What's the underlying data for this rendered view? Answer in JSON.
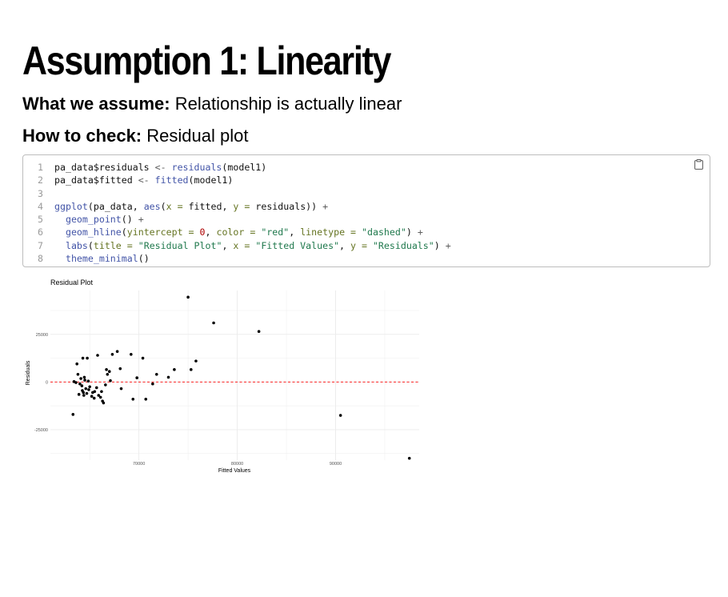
{
  "heading": "Assumption 1: Linearity",
  "assume": {
    "label": "What we assume:",
    "text": " Relationship is actually linear"
  },
  "check": {
    "label": "How to check:",
    "text": " Residual plot"
  },
  "code": {
    "copy_icon": "clipboard-icon",
    "lines": [
      [
        {
          "t": "var",
          "s": "pa_data$residuals "
        },
        {
          "t": "op",
          "s": "<-"
        },
        {
          "t": "var",
          "s": " "
        },
        {
          "t": "fn",
          "s": "residuals"
        },
        {
          "t": "var",
          "s": "(model1)"
        }
      ],
      [
        {
          "t": "var",
          "s": "pa_data$fitted "
        },
        {
          "t": "op",
          "s": "<-"
        },
        {
          "t": "var",
          "s": " "
        },
        {
          "t": "fn",
          "s": "fitted"
        },
        {
          "t": "var",
          "s": "(model1)"
        }
      ],
      [],
      [
        {
          "t": "fn",
          "s": "ggplot"
        },
        {
          "t": "var",
          "s": "(pa_data, "
        },
        {
          "t": "fn",
          "s": "aes"
        },
        {
          "t": "var",
          "s": "("
        },
        {
          "t": "arg",
          "s": "x ="
        },
        {
          "t": "var",
          "s": " fitted, "
        },
        {
          "t": "arg",
          "s": "y ="
        },
        {
          "t": "var",
          "s": " residuals)) "
        },
        {
          "t": "op",
          "s": "+"
        }
      ],
      [
        {
          "t": "var",
          "s": "  "
        },
        {
          "t": "fn",
          "s": "geom_point"
        },
        {
          "t": "var",
          "s": "() "
        },
        {
          "t": "op",
          "s": "+"
        }
      ],
      [
        {
          "t": "var",
          "s": "  "
        },
        {
          "t": "fn",
          "s": "geom_hline"
        },
        {
          "t": "var",
          "s": "("
        },
        {
          "t": "arg",
          "s": "yintercept ="
        },
        {
          "t": "var",
          "s": " "
        },
        {
          "t": "num",
          "s": "0"
        },
        {
          "t": "var",
          "s": ", "
        },
        {
          "t": "arg",
          "s": "color ="
        },
        {
          "t": "var",
          "s": " "
        },
        {
          "t": "str",
          "s": "\"red\""
        },
        {
          "t": "var",
          "s": ", "
        },
        {
          "t": "arg",
          "s": "linetype ="
        },
        {
          "t": "var",
          "s": " "
        },
        {
          "t": "str",
          "s": "\"dashed\""
        },
        {
          "t": "var",
          "s": ") "
        },
        {
          "t": "op",
          "s": "+"
        }
      ],
      [
        {
          "t": "var",
          "s": "  "
        },
        {
          "t": "fn",
          "s": "labs"
        },
        {
          "t": "var",
          "s": "("
        },
        {
          "t": "arg",
          "s": "title ="
        },
        {
          "t": "var",
          "s": " "
        },
        {
          "t": "str",
          "s": "\"Residual Plot\""
        },
        {
          "t": "var",
          "s": ", "
        },
        {
          "t": "arg",
          "s": "x ="
        },
        {
          "t": "var",
          "s": " "
        },
        {
          "t": "str",
          "s": "\"Fitted Values\""
        },
        {
          "t": "var",
          "s": ", "
        },
        {
          "t": "arg",
          "s": "y ="
        },
        {
          "t": "var",
          "s": " "
        },
        {
          "t": "str",
          "s": "\"Residuals\""
        },
        {
          "t": "var",
          "s": ") "
        },
        {
          "t": "op",
          "s": "+"
        }
      ],
      [
        {
          "t": "var",
          "s": "  "
        },
        {
          "t": "fn",
          "s": "theme_minimal"
        },
        {
          "t": "var",
          "s": "()"
        }
      ]
    ]
  },
  "chart_data": {
    "type": "scatter",
    "title": "Residual Plot",
    "xlabel": "Fitted Values",
    "ylabel": "Residuals",
    "xlim": [
      61000,
      98500
    ],
    "ylim": [
      -41000,
      48000
    ],
    "x_ticks": [
      70000,
      80000,
      90000
    ],
    "y_ticks": [
      -25000,
      0,
      25000
    ],
    "grid": true,
    "hline": {
      "y": 0,
      "color": "#ff0000",
      "linetype": "dashed"
    },
    "point_color": "#000000",
    "points": [
      [
        63400,
        200
      ],
      [
        63300,
        -17000
      ],
      [
        63600,
        -300
      ],
      [
        63700,
        9500
      ],
      [
        63800,
        4000
      ],
      [
        63900,
        -6500
      ],
      [
        64000,
        -1000
      ],
      [
        64100,
        1800
      ],
      [
        64200,
        -2000
      ],
      [
        64250,
        -4500
      ],
      [
        64300,
        12500
      ],
      [
        64350,
        -5500
      ],
      [
        64400,
        -7000
      ],
      [
        64450,
        2500
      ],
      [
        64500,
        1000
      ],
      [
        64600,
        -3500
      ],
      [
        64700,
        -6000
      ],
      [
        64750,
        12500
      ],
      [
        64850,
        500
      ],
      [
        64900,
        -4000
      ],
      [
        65000,
        -2500
      ],
      [
        65200,
        -7500
      ],
      [
        65300,
        -5500
      ],
      [
        65450,
        -8500
      ],
      [
        65500,
        -5000
      ],
      [
        65700,
        -3000
      ],
      [
        65800,
        14000
      ],
      [
        65900,
        -7000
      ],
      [
        66100,
        -8000
      ],
      [
        66200,
        -5000
      ],
      [
        66300,
        -10000
      ],
      [
        66400,
        -11000
      ],
      [
        66600,
        -1500
      ],
      [
        66700,
        6500
      ],
      [
        66800,
        4000
      ],
      [
        67000,
        5500
      ],
      [
        67100,
        700
      ],
      [
        67300,
        14500
      ],
      [
        67800,
        16000
      ],
      [
        68100,
        7000
      ],
      [
        68200,
        -3500
      ],
      [
        69200,
        14500
      ],
      [
        69400,
        -9000
      ],
      [
        69800,
        2200
      ],
      [
        70400,
        12500
      ],
      [
        70700,
        -9000
      ],
      [
        71400,
        -1000
      ],
      [
        71800,
        4000
      ],
      [
        73000,
        2500
      ],
      [
        73600,
        6500
      ],
      [
        75000,
        44500
      ],
      [
        75300,
        6500
      ],
      [
        75800,
        11000
      ],
      [
        77600,
        31000
      ],
      [
        82200,
        26500
      ],
      [
        90500,
        -17500
      ],
      [
        97500,
        -40000
      ]
    ]
  }
}
